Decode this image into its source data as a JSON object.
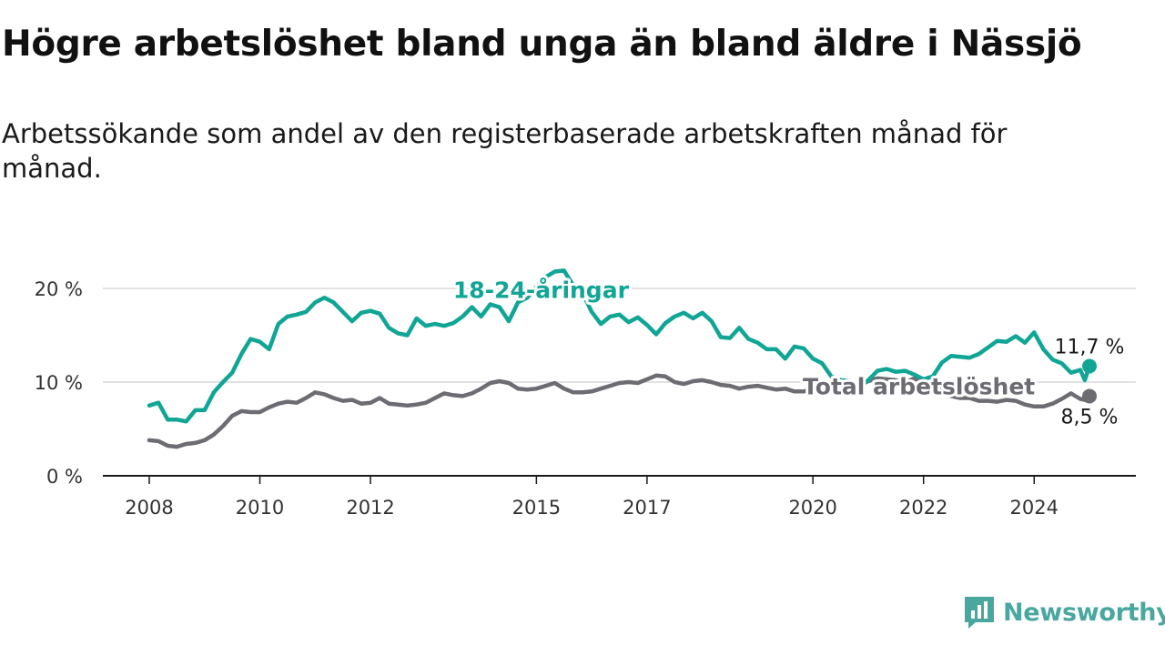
{
  "title": "Högre arbetslöshet bland unga än bland äldre i Nässjö",
  "subtitle": "Arbetssökande som andel av den registerbaserade arbetskraften månad för månad.",
  "brand": {
    "name": "Newsworthy",
    "icon": "newsworthy-logo-icon",
    "color": "#4aa79f"
  },
  "chart_data": {
    "type": "line",
    "x_type": "year-month",
    "xlim": [
      "2008-01",
      "2025-01"
    ],
    "ylim": [
      0,
      20
    ],
    "y_ticks": [
      0,
      10,
      20
    ],
    "y_tick_labels": [
      "0 %",
      "10 %",
      "20 %"
    ],
    "x_tick_labels": [
      "2008",
      "2010",
      "2012",
      "2015",
      "2017",
      "2020",
      "2022",
      "2024"
    ],
    "grid": true,
    "series": [
      {
        "name": "18-24-åringar",
        "color": "#10a595",
        "end_label": "11,7 %",
        "points": [
          [
            "2008-01",
            7.5
          ],
          [
            "2008-03",
            7.8
          ],
          [
            "2008-05",
            6.0
          ],
          [
            "2008-07",
            6.0
          ],
          [
            "2008-09",
            5.8
          ],
          [
            "2008-11",
            7.0
          ],
          [
            "2009-01",
            7.0
          ],
          [
            "2009-03",
            8.9
          ],
          [
            "2009-05",
            10.0
          ],
          [
            "2009-07",
            11.0
          ],
          [
            "2009-09",
            13.0
          ],
          [
            "2009-11",
            14.6
          ],
          [
            "2010-01",
            14.3
          ],
          [
            "2010-03",
            13.5
          ],
          [
            "2010-05",
            16.2
          ],
          [
            "2010-07",
            17.0
          ],
          [
            "2010-09",
            17.2
          ],
          [
            "2010-11",
            17.5
          ],
          [
            "2011-01",
            18.5
          ],
          [
            "2011-03",
            19.0
          ],
          [
            "2011-05",
            18.5
          ],
          [
            "2011-07",
            17.5
          ],
          [
            "2011-09",
            16.5
          ],
          [
            "2011-11",
            17.4
          ],
          [
            "2012-01",
            17.6
          ],
          [
            "2012-03",
            17.3
          ],
          [
            "2012-05",
            15.8
          ],
          [
            "2012-07",
            15.2
          ],
          [
            "2012-09",
            15.0
          ],
          [
            "2012-11",
            16.8
          ],
          [
            "2013-01",
            16.0
          ],
          [
            "2013-03",
            16.2
          ],
          [
            "2013-05",
            16.0
          ],
          [
            "2013-07",
            16.3
          ],
          [
            "2013-09",
            17.0
          ],
          [
            "2013-11",
            18.0
          ],
          [
            "2014-01",
            17.0
          ],
          [
            "2014-03",
            18.3
          ],
          [
            "2014-05",
            18.0
          ],
          [
            "2014-07",
            16.5
          ],
          [
            "2014-09",
            18.5
          ],
          [
            "2014-11",
            19.0
          ],
          [
            "2015-01",
            20.2
          ],
          [
            "2015-03",
            21.2
          ],
          [
            "2015-05",
            21.8
          ],
          [
            "2015-07",
            21.9
          ],
          [
            "2015-09",
            20.3
          ],
          [
            "2015-11",
            19.5
          ],
          [
            "2016-01",
            17.5
          ],
          [
            "2016-03",
            16.2
          ],
          [
            "2016-05",
            17.0
          ],
          [
            "2016-07",
            17.2
          ],
          [
            "2016-09",
            16.4
          ],
          [
            "2016-11",
            16.9
          ],
          [
            "2017-01",
            16.1
          ],
          [
            "2017-03",
            15.1
          ],
          [
            "2017-05",
            16.3
          ],
          [
            "2017-07",
            17.0
          ],
          [
            "2017-09",
            17.4
          ],
          [
            "2017-11",
            16.8
          ],
          [
            "2018-01",
            17.4
          ],
          [
            "2018-03",
            16.5
          ],
          [
            "2018-05",
            14.8
          ],
          [
            "2018-07",
            14.7
          ],
          [
            "2018-09",
            15.8
          ],
          [
            "2018-11",
            14.6
          ],
          [
            "2019-01",
            14.2
          ],
          [
            "2019-03",
            13.5
          ],
          [
            "2019-05",
            13.5
          ],
          [
            "2019-07",
            12.5
          ],
          [
            "2019-09",
            13.8
          ],
          [
            "2019-11",
            13.6
          ],
          [
            "2020-01",
            12.5
          ],
          [
            "2020-03",
            12.0
          ],
          [
            "2020-05",
            10.6
          ],
          [
            "2020-07",
            10.2
          ],
          [
            "2020-09",
            10.1
          ],
          [
            "2020-11",
            9.5
          ],
          [
            "2021-01",
            10.2
          ],
          [
            "2021-03",
            11.2
          ],
          [
            "2021-05",
            11.4
          ],
          [
            "2021-07",
            11.1
          ],
          [
            "2021-09",
            11.2
          ],
          [
            "2021-11",
            10.8
          ],
          [
            "2022-01",
            10.3
          ],
          [
            "2022-03",
            10.6
          ],
          [
            "2022-05",
            12.1
          ],
          [
            "2022-07",
            12.8
          ],
          [
            "2022-09",
            12.7
          ],
          [
            "2022-11",
            12.6
          ],
          [
            "2023-01",
            13.0
          ],
          [
            "2023-03",
            13.7
          ],
          [
            "2023-05",
            14.4
          ],
          [
            "2023-07",
            14.3
          ],
          [
            "2023-09",
            14.9
          ],
          [
            "2023-11",
            14.2
          ],
          [
            "2024-01",
            15.3
          ],
          [
            "2024-03",
            13.5
          ],
          [
            "2024-05",
            12.4
          ],
          [
            "2024-07",
            12.0
          ],
          [
            "2024-09",
            11.0
          ],
          [
            "2024-11",
            11.3
          ],
          [
            "2024-12",
            10.2
          ],
          [
            "2025-01",
            11.7
          ]
        ]
      },
      {
        "name": "Total arbetslöshet",
        "color": "#6d6c73",
        "end_label": "8,5 %",
        "points": [
          [
            "2008-01",
            3.8
          ],
          [
            "2008-03",
            3.7
          ],
          [
            "2008-05",
            3.2
          ],
          [
            "2008-07",
            3.1
          ],
          [
            "2008-09",
            3.4
          ],
          [
            "2008-11",
            3.5
          ],
          [
            "2009-01",
            3.8
          ],
          [
            "2009-03",
            4.4
          ],
          [
            "2009-05",
            5.3
          ],
          [
            "2009-07",
            6.4
          ],
          [
            "2009-09",
            6.9
          ],
          [
            "2009-11",
            6.8
          ],
          [
            "2010-01",
            6.8
          ],
          [
            "2010-03",
            7.3
          ],
          [
            "2010-05",
            7.7
          ],
          [
            "2010-07",
            7.9
          ],
          [
            "2010-09",
            7.8
          ],
          [
            "2010-11",
            8.3
          ],
          [
            "2011-01",
            8.9
          ],
          [
            "2011-03",
            8.7
          ],
          [
            "2011-05",
            8.3
          ],
          [
            "2011-07",
            8.0
          ],
          [
            "2011-09",
            8.1
          ],
          [
            "2011-11",
            7.7
          ],
          [
            "2012-01",
            7.8
          ],
          [
            "2012-03",
            8.3
          ],
          [
            "2012-05",
            7.7
          ],
          [
            "2012-07",
            7.6
          ],
          [
            "2012-09",
            7.5
          ],
          [
            "2012-11",
            7.6
          ],
          [
            "2013-01",
            7.8
          ],
          [
            "2013-03",
            8.3
          ],
          [
            "2013-05",
            8.8
          ],
          [
            "2013-07",
            8.6
          ],
          [
            "2013-09",
            8.5
          ],
          [
            "2013-11",
            8.8
          ],
          [
            "2014-01",
            9.3
          ],
          [
            "2014-03",
            9.9
          ],
          [
            "2014-05",
            10.1
          ],
          [
            "2014-07",
            9.9
          ],
          [
            "2014-09",
            9.3
          ],
          [
            "2014-11",
            9.2
          ],
          [
            "2015-01",
            9.3
          ],
          [
            "2015-03",
            9.6
          ],
          [
            "2015-05",
            9.9
          ],
          [
            "2015-07",
            9.3
          ],
          [
            "2015-09",
            8.9
          ],
          [
            "2015-11",
            8.9
          ],
          [
            "2016-01",
            9.0
          ],
          [
            "2016-03",
            9.3
          ],
          [
            "2016-05",
            9.6
          ],
          [
            "2016-07",
            9.9
          ],
          [
            "2016-09",
            10.0
          ],
          [
            "2016-11",
            9.9
          ],
          [
            "2017-01",
            10.3
          ],
          [
            "2017-03",
            10.7
          ],
          [
            "2017-05",
            10.6
          ],
          [
            "2017-07",
            10.0
          ],
          [
            "2017-09",
            9.8
          ],
          [
            "2017-11",
            10.1
          ],
          [
            "2018-01",
            10.2
          ],
          [
            "2018-03",
            10.0
          ],
          [
            "2018-05",
            9.7
          ],
          [
            "2018-07",
            9.6
          ],
          [
            "2018-09",
            9.3
          ],
          [
            "2018-11",
            9.5
          ],
          [
            "2019-01",
            9.6
          ],
          [
            "2019-03",
            9.4
          ],
          [
            "2019-05",
            9.2
          ],
          [
            "2019-07",
            9.3
          ],
          [
            "2019-09",
            9.0
          ],
          [
            "2019-11",
            9.0
          ],
          [
            "2020-01",
            9.3
          ],
          [
            "2020-03",
            9.4
          ],
          [
            "2020-05",
            9.0
          ],
          [
            "2020-07",
            8.9
          ],
          [
            "2020-09",
            8.9
          ],
          [
            "2020-11",
            9.6
          ],
          [
            "2021-01",
            10.1
          ],
          [
            "2021-03",
            10.4
          ],
          [
            "2021-05",
            10.3
          ],
          [
            "2021-07",
            10.2
          ],
          [
            "2021-09",
            10.0
          ],
          [
            "2021-11",
            10.4
          ],
          [
            "2022-01",
            9.9
          ],
          [
            "2022-03",
            9.6
          ],
          [
            "2022-05",
            9.1
          ],
          [
            "2022-07",
            8.5
          ],
          [
            "2022-09",
            8.3
          ],
          [
            "2022-11",
            8.3
          ],
          [
            "2023-01",
            8.0
          ],
          [
            "2023-03",
            8.0
          ],
          [
            "2023-05",
            7.9
          ],
          [
            "2023-07",
            8.1
          ],
          [
            "2023-09",
            8.0
          ],
          [
            "2023-11",
            7.6
          ],
          [
            "2024-01",
            7.4
          ],
          [
            "2024-03",
            7.4
          ],
          [
            "2024-05",
            7.7
          ],
          [
            "2024-07",
            8.2
          ],
          [
            "2024-09",
            8.8
          ],
          [
            "2024-11",
            8.2
          ],
          [
            "2024-12",
            8.1
          ],
          [
            "2025-01",
            8.5
          ]
        ]
      }
    ],
    "annotations": [
      {
        "series": "18-24-åringar",
        "text": "18-24-åringar",
        "at": [
          "2015-02",
          19.0
        ]
      },
      {
        "series": "Total arbetslöshet",
        "text": "Total arbetslöshet",
        "at": [
          "2021-12",
          8.7
        ]
      }
    ]
  }
}
